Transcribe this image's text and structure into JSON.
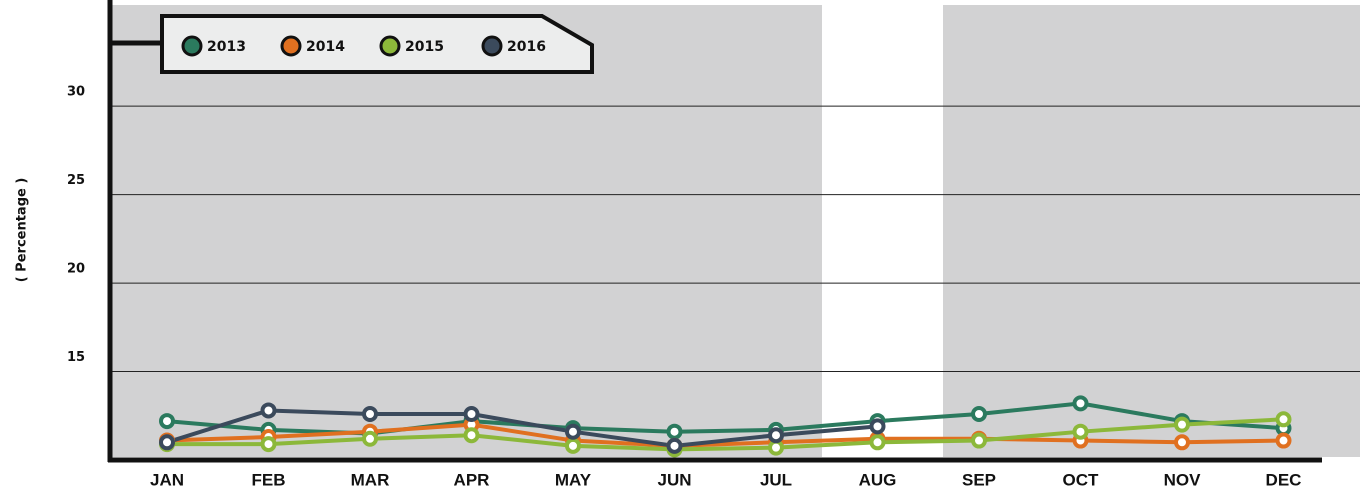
{
  "chart_data": {
    "type": "line",
    "y_label": "( Percentage )",
    "categories": [
      "JAN",
      "FEB",
      "MAR",
      "APR",
      "MAY",
      "JUN",
      "JUL",
      "AUG",
      "SEP",
      "OCT",
      "NOV",
      "DEC"
    ],
    "series": [
      {
        "name": "2013",
        "color": "#2b7a5e",
        "values": [
          12.2,
          11.7,
          11.5,
          12.2,
          11.8,
          11.6,
          11.7,
          12.2,
          12.6,
          13.2,
          12.2,
          11.8
        ]
      },
      {
        "name": "2014",
        "color": "#e07020",
        "values": [
          11.1,
          11.3,
          11.6,
          12.0,
          11.1,
          10.8,
          11.0,
          11.2,
          11.2,
          11.1,
          11.0,
          11.1
        ]
      },
      {
        "name": "2015",
        "color": "#8cb83a",
        "values": [
          10.9,
          10.9,
          11.2,
          11.4,
          10.8,
          10.6,
          10.7,
          11.0,
          11.1,
          11.6,
          12.0,
          12.3
        ]
      },
      {
        "name": "2016",
        "color": "#3b4a5c",
        "values": [
          11.0,
          12.8,
          12.6,
          12.6,
          11.6,
          10.8,
          11.4,
          11.9,
          null,
          null,
          null,
          null
        ]
      }
    ],
    "ylim": [
      10,
      36
    ],
    "yticks": [
      15,
      20,
      25,
      30
    ],
    "grid": true,
    "legend": "top-left"
  }
}
